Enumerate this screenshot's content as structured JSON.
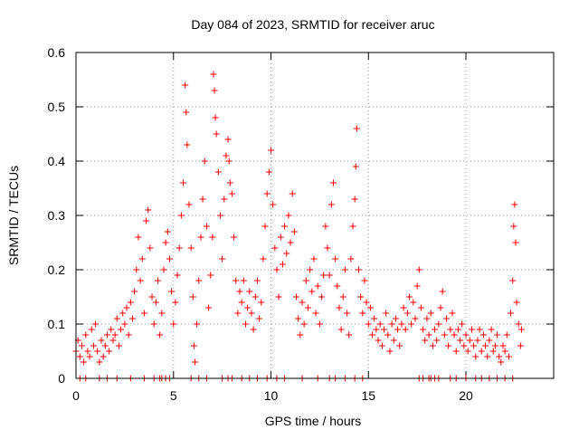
{
  "chart_data": {
    "type": "scatter",
    "title": "Day 084 of 2023, SRMTID for receiver aruc",
    "xlabel": "GPS time / hours",
    "ylabel": "SRMTID / TECUs",
    "xlim": [
      0,
      24.5
    ],
    "ylim": [
      0,
      0.6
    ],
    "x_ticks": [
      "0",
      "5",
      "10",
      "15",
      "20"
    ],
    "y_ticks": [
      "0",
      "0.1",
      "0.2",
      "0.3",
      "0.4",
      "0.5",
      "0.6"
    ],
    "grid": true,
    "marker": "plus",
    "color": "#ff0000",
    "series": [
      {
        "name": "SRMTID",
        "points": [
          [
            0.0,
            0.05
          ],
          [
            0.1,
            0.07
          ],
          [
            0.2,
            0.04
          ],
          [
            0.3,
            0.06
          ],
          [
            0.4,
            0.03
          ],
          [
            0.5,
            0.08
          ],
          [
            0.6,
            0.05
          ],
          [
            0.7,
            0.04
          ],
          [
            0.8,
            0.09
          ],
          [
            0.9,
            0.06
          ],
          [
            1.0,
            0.1
          ],
          [
            1.1,
            0.05
          ],
          [
            1.2,
            0.03
          ],
          [
            1.3,
            0.07
          ],
          [
            1.4,
            0.04
          ],
          [
            1.5,
            0.06
          ],
          [
            1.6,
            0.08
          ],
          [
            1.7,
            0.05
          ],
          [
            1.8,
            0.09
          ],
          [
            1.9,
            0.07
          ],
          [
            2.0,
            0.08
          ],
          [
            2.1,
            0.11
          ],
          [
            2.2,
            0.06
          ],
          [
            2.3,
            0.09
          ],
          [
            2.4,
            0.12
          ],
          [
            2.5,
            0.1
          ],
          [
            2.6,
            0.13
          ],
          [
            2.7,
            0.08
          ],
          [
            2.8,
            0.14
          ],
          [
            2.9,
            0.11
          ],
          [
            3.0,
            0.16
          ],
          [
            3.1,
            0.2
          ],
          [
            3.2,
            0.26
          ],
          [
            3.3,
            0.18
          ],
          [
            3.4,
            0.22
          ],
          [
            3.5,
            0.12
          ],
          [
            3.6,
            0.29
          ],
          [
            3.7,
            0.31
          ],
          [
            3.8,
            0.24
          ],
          [
            3.9,
            0.15
          ],
          [
            4.0,
            0.1
          ],
          [
            4.1,
            0.14
          ],
          [
            4.2,
            0.18
          ],
          [
            4.3,
            0.08
          ],
          [
            4.4,
            0.12
          ],
          [
            4.5,
            0.2
          ],
          [
            4.6,
            0.25
          ],
          [
            4.7,
            0.27
          ],
          [
            4.8,
            0.22
          ],
          [
            4.9,
            0.16
          ],
          [
            5.0,
            0.1
          ],
          [
            5.1,
            0.14
          ],
          [
            5.2,
            0.19
          ],
          [
            5.3,
            0.24
          ],
          [
            5.4,
            0.3
          ],
          [
            5.5,
            0.36
          ],
          [
            5.6,
            0.54
          ],
          [
            5.65,
            0.49
          ],
          [
            5.7,
            0.43
          ],
          [
            5.8,
            0.32
          ],
          [
            5.9,
            0.24
          ],
          [
            6.0,
            0.15
          ],
          [
            6.05,
            0.06
          ],
          [
            6.1,
            0.03
          ],
          [
            6.2,
            0.1
          ],
          [
            6.3,
            0.18
          ],
          [
            6.4,
            0.26
          ],
          [
            6.5,
            0.33
          ],
          [
            6.6,
            0.4
          ],
          [
            6.7,
            0.28
          ],
          [
            6.8,
            0.13
          ],
          [
            6.9,
            0.19
          ],
          [
            7.0,
            0.26
          ],
          [
            7.05,
            0.56
          ],
          [
            7.1,
            0.53
          ],
          [
            7.15,
            0.48
          ],
          [
            7.2,
            0.45
          ],
          [
            7.3,
            0.38
          ],
          [
            7.4,
            0.3
          ],
          [
            7.5,
            0.22
          ],
          [
            7.6,
            0.33
          ],
          [
            7.7,
            0.41
          ],
          [
            7.8,
            0.44
          ],
          [
            7.85,
            0.4
          ],
          [
            7.9,
            0.36
          ],
          [
            8.0,
            0.34
          ],
          [
            8.1,
            0.26
          ],
          [
            8.2,
            0.18
          ],
          [
            8.3,
            0.12
          ],
          [
            8.4,
            0.16
          ],
          [
            8.5,
            0.14
          ],
          [
            8.6,
            0.18
          ],
          [
            8.7,
            0.1
          ],
          [
            8.8,
            0.13
          ],
          [
            8.9,
            0.16
          ],
          [
            9.0,
            0.12
          ],
          [
            9.1,
            0.09
          ],
          [
            9.2,
            0.15
          ],
          [
            9.3,
            0.18
          ],
          [
            9.4,
            0.11
          ],
          [
            9.5,
            0.14
          ],
          [
            9.6,
            0.22
          ],
          [
            9.7,
            0.28
          ],
          [
            9.8,
            0.34
          ],
          [
            9.9,
            0.38
          ],
          [
            10.0,
            0.42
          ],
          [
            10.1,
            0.32
          ],
          [
            10.2,
            0.24
          ],
          [
            10.3,
            0.2
          ],
          [
            10.4,
            0.15
          ],
          [
            10.5,
            0.26
          ],
          [
            10.6,
            0.21
          ],
          [
            10.7,
            0.28
          ],
          [
            10.8,
            0.23
          ],
          [
            10.9,
            0.3
          ],
          [
            11.0,
            0.25
          ],
          [
            11.1,
            0.34
          ],
          [
            11.2,
            0.27
          ],
          [
            11.3,
            0.15
          ],
          [
            11.4,
            0.11
          ],
          [
            11.5,
            0.08
          ],
          [
            11.6,
            0.14
          ],
          [
            11.7,
            0.1
          ],
          [
            11.8,
            0.18
          ],
          [
            11.9,
            0.13
          ],
          [
            12.0,
            0.2
          ],
          [
            12.1,
            0.16
          ],
          [
            12.2,
            0.22
          ],
          [
            12.3,
            0.12
          ],
          [
            12.4,
            0.17
          ],
          [
            12.5,
            0.1
          ],
          [
            12.6,
            0.15
          ],
          [
            12.7,
            0.19
          ],
          [
            12.8,
            0.28
          ],
          [
            12.9,
            0.24
          ],
          [
            13.0,
            0.19
          ],
          [
            13.1,
            0.32
          ],
          [
            13.2,
            0.36
          ],
          [
            13.3,
            0.22
          ],
          [
            13.4,
            0.17
          ],
          [
            13.5,
            0.13
          ],
          [
            13.6,
            0.09
          ],
          [
            13.7,
            0.15
          ],
          [
            13.8,
            0.2
          ],
          [
            13.9,
            0.12
          ],
          [
            14.0,
            0.08
          ],
          [
            14.1,
            0.22
          ],
          [
            14.2,
            0.28
          ],
          [
            14.3,
            0.33
          ],
          [
            14.35,
            0.39
          ],
          [
            14.4,
            0.46
          ],
          [
            14.5,
            0.2
          ],
          [
            14.6,
            0.15
          ],
          [
            14.7,
            0.12
          ],
          [
            14.8,
            0.18
          ],
          [
            14.9,
            0.14
          ],
          [
            15.0,
            0.1
          ],
          [
            15.1,
            0.13
          ],
          [
            15.2,
            0.08
          ],
          [
            15.3,
            0.11
          ],
          [
            15.4,
            0.09
          ],
          [
            15.5,
            0.07
          ],
          [
            15.6,
            0.1
          ],
          [
            15.7,
            0.06
          ],
          [
            15.8,
            0.09
          ],
          [
            15.9,
            0.12
          ],
          [
            16.0,
            0.08
          ],
          [
            16.1,
            0.05
          ],
          [
            16.2,
            0.1
          ],
          [
            16.3,
            0.07
          ],
          [
            16.4,
            0.11
          ],
          [
            16.5,
            0.09
          ],
          [
            16.6,
            0.06
          ],
          [
            16.7,
            0.1
          ],
          [
            16.8,
            0.13
          ],
          [
            16.9,
            0.09
          ],
          [
            17.0,
            0.12
          ],
          [
            17.1,
            0.15
          ],
          [
            17.2,
            0.1
          ],
          [
            17.3,
            0.14
          ],
          [
            17.4,
            0.11
          ],
          [
            17.5,
            0.17
          ],
          [
            17.6,
            0.2
          ],
          [
            17.7,
            0.13
          ],
          [
            17.8,
            0.09
          ],
          [
            17.9,
            0.07
          ],
          [
            18.0,
            0.11
          ],
          [
            18.1,
            0.08
          ],
          [
            18.2,
            0.12
          ],
          [
            18.3,
            0.06
          ],
          [
            18.4,
            0.09
          ],
          [
            18.5,
            0.07
          ],
          [
            18.6,
            0.1
          ],
          [
            18.7,
            0.13
          ],
          [
            18.8,
            0.16
          ],
          [
            18.9,
            0.08
          ],
          [
            19.0,
            0.11
          ],
          [
            19.1,
            0.06
          ],
          [
            19.2,
            0.09
          ],
          [
            19.3,
            0.12
          ],
          [
            19.4,
            0.08
          ],
          [
            19.5,
            0.05
          ],
          [
            19.6,
            0.09
          ],
          [
            19.7,
            0.07
          ],
          [
            19.8,
            0.1
          ],
          [
            19.9,
            0.06
          ],
          [
            20.0,
            0.08
          ],
          [
            20.1,
            0.05
          ],
          [
            20.2,
            0.07
          ],
          [
            20.3,
            0.09
          ],
          [
            20.4,
            0.06
          ],
          [
            20.5,
            0.04
          ],
          [
            20.6,
            0.07
          ],
          [
            20.7,
            0.09
          ],
          [
            20.8,
            0.05
          ],
          [
            20.9,
            0.08
          ],
          [
            21.0,
            0.06
          ],
          [
            21.1,
            0.04
          ],
          [
            21.2,
            0.07
          ],
          [
            21.3,
            0.09
          ],
          [
            21.4,
            0.05
          ],
          [
            21.5,
            0.06
          ],
          [
            21.6,
            0.08
          ],
          [
            21.7,
            0.04
          ],
          [
            21.8,
            0.03
          ],
          [
            21.9,
            0.06
          ],
          [
            22.0,
            0.05
          ],
          [
            22.1,
            0.08
          ],
          [
            22.2,
            0.04
          ],
          [
            22.3,
            0.12
          ],
          [
            22.4,
            0.18
          ],
          [
            22.45,
            0.28
          ],
          [
            22.5,
            0.32
          ],
          [
            22.55,
            0.25
          ],
          [
            22.6,
            0.14
          ],
          [
            22.7,
            0.1
          ],
          [
            22.8,
            0.06
          ],
          [
            22.85,
            0.09
          ]
        ]
      }
    ],
    "zero_points_x": [
      0.2,
      0.5,
      1.2,
      1.6,
      2.1,
      2.8,
      3.5,
      4.0,
      4.3,
      4.4,
      4.6,
      4.8,
      5.9,
      6.3,
      6.7,
      7.5,
      7.8,
      8.0,
      8.5,
      8.9,
      9.3,
      9.8,
      10.3,
      10.7,
      11.6,
      12.4,
      13.0,
      13.3,
      13.8,
      14.3,
      14.7,
      17.6,
      17.8,
      18.1,
      18.2,
      18.4,
      18.6,
      19.2,
      19.5,
      20.0,
      20.5,
      20.8,
      21.2,
      21.6,
      22.0,
      22.4
    ]
  }
}
